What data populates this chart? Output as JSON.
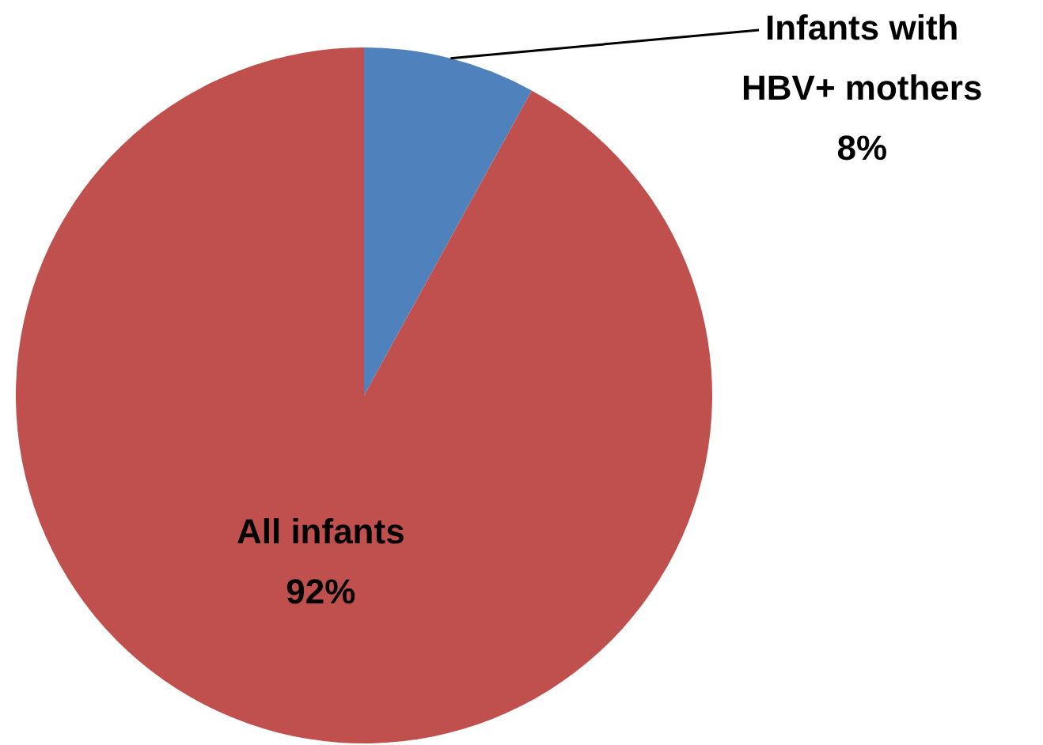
{
  "chart_data": {
    "type": "pie",
    "categories": [
      "Infants with HBV+ mothers",
      "All infants"
    ],
    "values": [
      8,
      92
    ],
    "colors": [
      "#4f81bd",
      "#c0504d"
    ],
    "value_labels": [
      "8%",
      "92%"
    ],
    "legend": false
  }
}
